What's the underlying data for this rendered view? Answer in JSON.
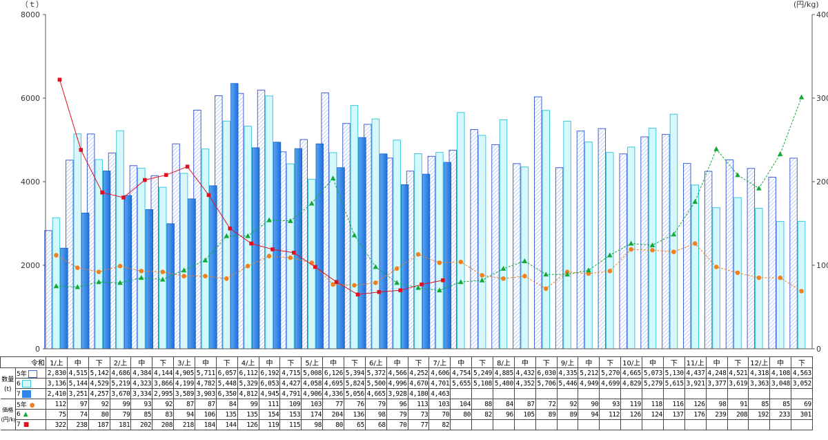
{
  "chart_data": {
    "type": "bar",
    "y_left_unit": "（ｔ）",
    "y_right_unit": "(円/kg)",
    "y_left_range": [
      0,
      8000
    ],
    "y_right_range": [
      0,
      400
    ],
    "y_left_ticks": [
      "0",
      "2000",
      "4000",
      "6000",
      "8000"
    ],
    "y_right_ticks": [
      "0",
      "100",
      "200",
      "300",
      "400"
    ],
    "categories": [
      "1/上",
      "中",
      "下",
      "2/上",
      "中",
      "下",
      "3/上",
      "中",
      "下",
      "4/上",
      "中",
      "下",
      "5/上",
      "中",
      "下",
      "6/上",
      "中",
      "下",
      "7/上",
      "中",
      "下",
      "8/上",
      "中",
      "下",
      "9/上",
      "中",
      "下",
      "10/上",
      "中",
      "下",
      "11/上",
      "中",
      "下",
      "12/上",
      "中",
      "下"
    ],
    "category_header": "令和",
    "quantity_group_label": "数量",
    "quantity_unit_label": "(t)",
    "price_group_label": "価格",
    "price_unit_label": "(円/kg)",
    "quantity_series": [
      {
        "name": "5年",
        "color": "#4060d8",
        "values": [
          2830,
          4515,
          5142,
          4686,
          4384,
          4144,
          4905,
          5711,
          6057,
          6112,
          6192,
          4715,
          5008,
          6126,
          5394,
          5372,
          4566,
          4252,
          4606,
          4754,
          5249,
          4885,
          4432,
          6030,
          4335,
          5212,
          5270,
          4665,
          5073,
          5130,
          4437,
          4248,
          4521,
          4318,
          4108,
          4563
        ],
        "labels": [
          "2,830",
          "4,515",
          "5,142",
          "4,686",
          "4,384",
          "4,144",
          "4,905",
          "5,711",
          "6,057",
          "6,112",
          "6,192",
          "4,715",
          "5,008",
          "6,126",
          "5,394",
          "5,372",
          "4,566",
          "4,252",
          "4,606",
          "4,754",
          "5,249",
          "4,885",
          "4,432",
          "6,030",
          "4,335",
          "5,212",
          "5,270",
          "4,665",
          "5,073",
          "5,130",
          "4,437",
          "4,248",
          "4,521",
          "4,318",
          "4,108",
          "4,563"
        ]
      },
      {
        "name": "6",
        "color": "#3cc8dc",
        "values": [
          3136,
          5144,
          4529,
          5219,
          4323,
          3866,
          4199,
          4782,
          5448,
          5329,
          6053,
          4427,
          4058,
          4695,
          5824,
          5500,
          4996,
          4670,
          4701,
          5655,
          5108,
          5480,
          4352,
          5706,
          5446,
          4949,
          4699,
          4829,
          5279,
          5615,
          3921,
          3377,
          3619,
          3363,
          3048,
          3052
        ],
        "labels": [
          "3,136",
          "5,144",
          "4,529",
          "5,219",
          "4,323",
          "3,866",
          "4,199",
          "4,782",
          "5,448",
          "5,329",
          "6,053",
          "4,427",
          "4,058",
          "4,695",
          "5,824",
          "5,500",
          "4,996",
          "4,670",
          "4,701",
          "5,655",
          "5,108",
          "5,480",
          "4,352",
          "5,706",
          "5,446",
          "4,949",
          "4,699",
          "4,829",
          "5,279",
          "5,615",
          "3,921",
          "3,377",
          "3,619",
          "3,363",
          "3,048",
          "3,052"
        ]
      },
      {
        "name": "7",
        "color": "#2f86e6",
        "values": [
          2410,
          3251,
          4257,
          3670,
          3334,
          2995,
          3589,
          3903,
          6350,
          4812,
          4945,
          4791,
          4906,
          4336,
          5056,
          4665,
          3928,
          4180,
          4463
        ],
        "labels": [
          "2,410",
          "3,251",
          "4,257",
          "3,670",
          "3,334",
          "2,995",
          "3,589",
          "3,903",
          "6,350",
          "4,812",
          "4,945",
          "4,791",
          "4,906",
          "4,336",
          "5,056",
          "4,665",
          "3,928",
          "4,180",
          "4,463"
        ]
      }
    ],
    "price_series": [
      {
        "name": "5年",
        "color": "#f08020",
        "marker": "circle",
        "values": [
          112,
          97,
          92,
          99,
          93,
          92,
          87,
          87,
          84,
          99,
          111,
          109,
          103,
          77,
          76,
          79,
          96,
          113,
          103,
          104,
          88,
          84,
          87,
          72,
          92,
          90,
          93,
          119,
          118,
          116,
          126,
          98,
          91,
          85,
          85,
          69
        ]
      },
      {
        "name": "6",
        "color": "#13a838",
        "marker": "triangle",
        "values": [
          75,
          74,
          80,
          79,
          85,
          83,
          94,
          106,
          135,
          135,
          154,
          153,
          174,
          204,
          136,
          98,
          79,
          73,
          70,
          80,
          82,
          96,
          105,
          89,
          89,
          94,
          112,
          126,
          124,
          137,
          176,
          239,
          208,
          192,
          233,
          301
        ]
      },
      {
        "name": "7",
        "color": "#e01020",
        "marker": "square",
        "values": [
          322,
          238,
          187,
          181,
          202,
          208,
          218,
          184,
          144,
          126,
          119,
          115,
          98,
          80,
          65,
          68,
          70,
          77,
          82
        ]
      }
    ]
  }
}
